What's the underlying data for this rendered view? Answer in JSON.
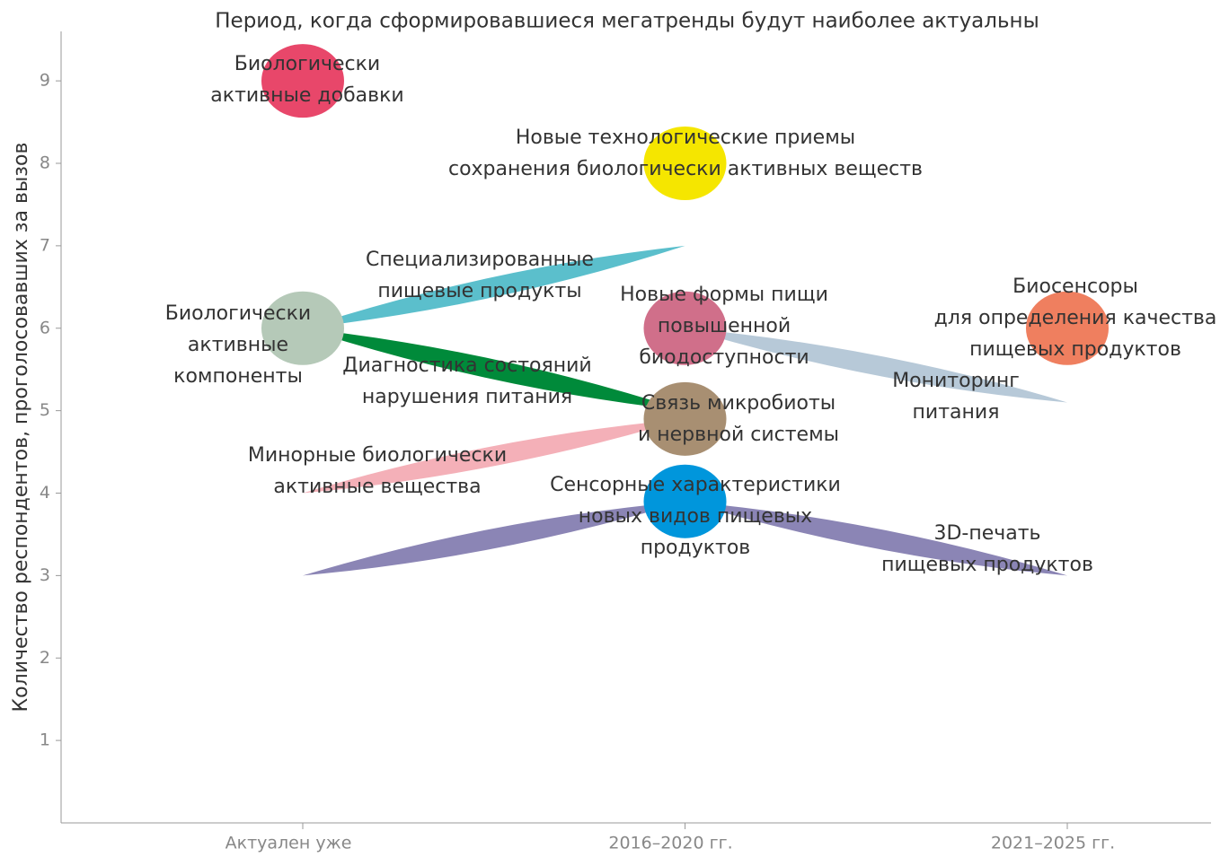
{
  "chart_data": {
    "type": "bubble-trend",
    "title": "Период, когда сформировавшиеся мегатренды будут наиболее актуальны",
    "y_label": "Количество респондентов, проголосовавших за  вызов",
    "categories": [
      "Актуален уже",
      "2016–2020 гг.",
      "2021–2025 гг."
    ],
    "ylim": [
      0,
      9.6
    ],
    "yticks": [
      1,
      2,
      3,
      4,
      5,
      6,
      7,
      8,
      9
    ],
    "series": [
      {
        "name": [
          "Биологически",
          "активные добавки"
        ],
        "color": "#e8476a",
        "values": [
          9,
          null,
          null
        ]
      },
      {
        "name": [
          "Новые технологические приемы",
          "сохранения биологически активных веществ"
        ],
        "color": "#f5e600",
        "values": [
          null,
          8,
          null
        ]
      },
      {
        "name": [
          "Биологически",
          "активные",
          "компоненты"
        ],
        "color": "#b5c9b8",
        "values": [
          6,
          null,
          null
        ]
      },
      {
        "name": [
          "Новые формы пищи",
          "повышенной",
          "биодоступности"
        ],
        "color": "#d06f8a",
        "values": [
          null,
          6,
          null
        ]
      },
      {
        "name": [
          "Биосенсоры",
          "для определения качества",
          "пищевых продуктов"
        ],
        "color": "#ef7f5f",
        "values": [
          null,
          null,
          6
        ]
      },
      {
        "name": [
          "Связь микробиоты",
          "и нервной системы"
        ],
        "color": "#a88f72",
        "values": [
          null,
          4.9,
          null
        ]
      },
      {
        "name": [
          "Сенсорные характеристики",
          "новых видов пищевых",
          "продуктов"
        ],
        "color": "#0096dc",
        "values": [
          null,
          3.9,
          null
        ]
      },
      {
        "name": [
          "Специализированные",
          "пищевые продукты"
        ],
        "color": "#5bbfcc",
        "values": [
          6,
          7,
          null
        ]
      },
      {
        "name": [
          "Диагностика состояний",
          "нарушения питания"
        ],
        "color": "#008a3a",
        "values": [
          6,
          5,
          null
        ]
      },
      {
        "name": [
          "Мониторинг",
          "питания"
        ],
        "color": "#b7c9d8",
        "values": [
          null,
          6,
          5.1
        ]
      },
      {
        "name": [
          "Минорные биологически",
          "активные вещества"
        ],
        "color": "#f4b0b8",
        "values": [
          4,
          4.9,
          null
        ]
      },
      {
        "name": [
          "3D-печать",
          "пищевых продуктов"
        ],
        "color": "#8b85b5",
        "values": [
          3,
          3.9,
          3
        ]
      }
    ]
  }
}
